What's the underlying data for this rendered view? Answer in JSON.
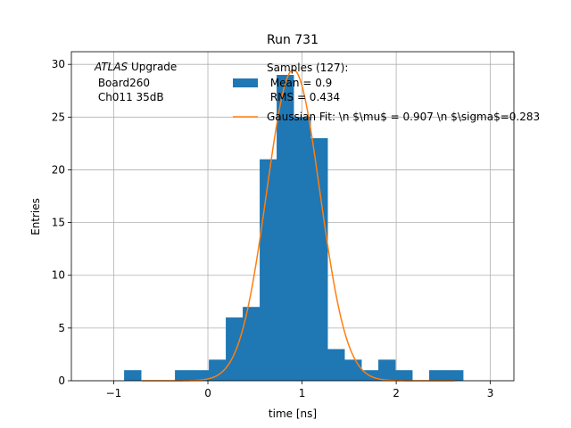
{
  "chart_data": {
    "type": "bar",
    "title": "Run 731",
    "xlabel": "time [ns]",
    "ylabel": "Entries",
    "xlim": [
      -1.45,
      3.25
    ],
    "ylim": [
      0,
      31.2
    ],
    "grid": true,
    "xticks": [
      -1,
      0,
      1,
      2,
      3
    ],
    "yticks": [
      0,
      5,
      10,
      15,
      20,
      25,
      30
    ],
    "bin_width": 0.18,
    "histogram": [
      {
        "x": -0.8,
        "count": 1
      },
      {
        "x": -0.62,
        "count": 0
      },
      {
        "x": -0.44,
        "count": 0
      },
      {
        "x": -0.26,
        "count": 1
      },
      {
        "x": -0.08,
        "count": 1
      },
      {
        "x": 0.1,
        "count": 2
      },
      {
        "x": 0.28,
        "count": 6
      },
      {
        "x": 0.46,
        "count": 7
      },
      {
        "x": 0.64,
        "count": 21
      },
      {
        "x": 0.82,
        "count": 29
      },
      {
        "x": 1.0,
        "count": 25
      },
      {
        "x": 1.18,
        "count": 23
      },
      {
        "x": 1.36,
        "count": 3
      },
      {
        "x": 1.54,
        "count": 2
      },
      {
        "x": 1.72,
        "count": 1
      },
      {
        "x": 1.9,
        "count": 2
      },
      {
        "x": 2.08,
        "count": 1
      },
      {
        "x": 2.26,
        "count": 0
      },
      {
        "x": 2.44,
        "count": 1
      },
      {
        "x": 2.62,
        "count": 1
      }
    ],
    "fit": {
      "mu": 0.907,
      "sigma": 0.283,
      "amplitude": 29.5,
      "x_range": [
        -0.7,
        2.62
      ]
    },
    "colors": {
      "bars": "#1f77b4",
      "fit": "#ff7f0e",
      "grid": "#b0b0b0"
    },
    "legend": {
      "placement": "top-right",
      "samples_label": [
        "Samples (127):",
        " Mean = 0.9",
        " RMS = 0.434"
      ],
      "fit_label": "Gaussian Fit: \\n $\\mu$ = 0.907 \\n $\\sigma$=0.283"
    },
    "annotation": {
      "italic": "ATLAS",
      "rest": " Upgrade",
      "line2": " Board260",
      "line3": " Ch011 35dB"
    }
  }
}
